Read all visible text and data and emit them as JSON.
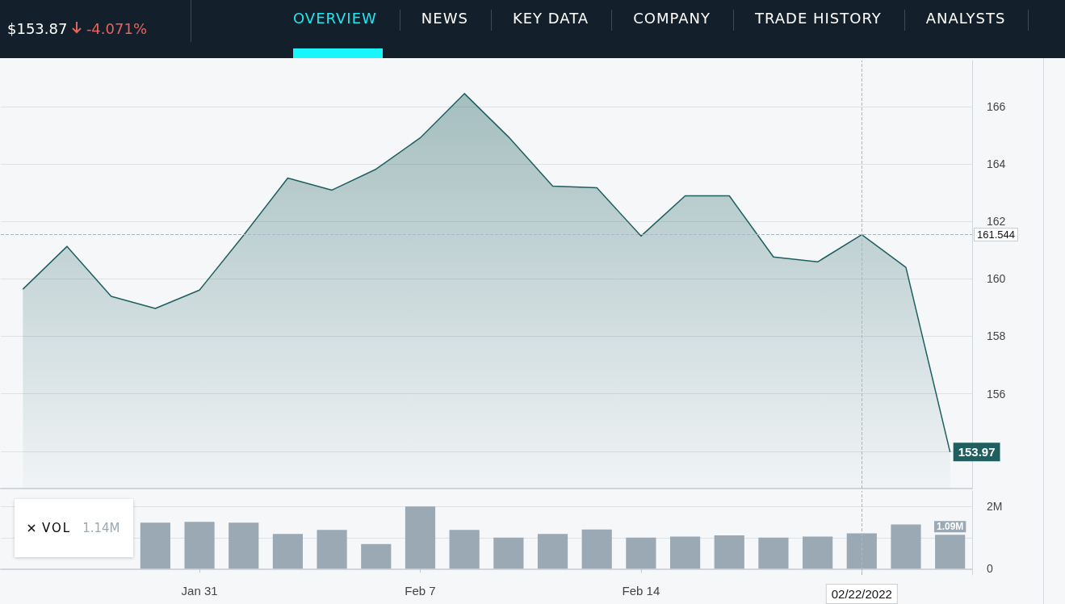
{
  "chart_data": [
    {
      "type": "area",
      "annotations": [
        "$153.87",
        "-4.071%",
        "OVERVIEW",
        "NEWS",
        "KEY DATA",
        "COMPANY",
        "TRADE HISTORY",
        "ANALYSTS"
      ],
      "categories": [
        null,
        null,
        null,
        null,
        "Jan 31",
        null,
        null,
        null,
        null,
        "Feb 7",
        null,
        null,
        null,
        null,
        "Feb 14",
        null,
        null,
        null,
        null,
        "02/22/2022",
        null,
        null
      ],
      "series": [
        {
          "color": "#1f5f5f",
          "values": [
            159.64,
            161.13,
            159.39,
            158.97,
            159.61,
            161.52,
            163.51,
            163.09,
            163.82,
            164.91,
            166.45,
            164.94,
            163.23,
            163.17,
            161.49,
            162.89,
            162.89,
            160.76,
            160.59,
            161.54,
            160.4,
            153.97
          ],
          "value_labels": [
            null,
            null,
            null,
            null,
            null,
            null,
            null,
            null,
            null,
            null,
            null,
            null,
            null,
            null,
            null,
            null,
            null,
            null,
            null,
            null,
            null,
            "153.97"
          ]
        }
      ],
      "ylim": [
        152.7,
        167.6
      ],
      "yticks": [
        {
          "value": 154,
          "label": null
        },
        156,
        158,
        160,
        162,
        164,
        166
      ],
      "ref_lines": [
        {
          "axis": "y",
          "value": 161.544,
          "label": "161.544",
          "line_style": "dashed"
        },
        {
          "axis": "x",
          "value": "02/22/2022",
          "line_style": "dashed"
        }
      ],
      "grid": "y",
      "tick_labels": "y",
      "marker": "none"
    },
    {
      "type": "bar",
      "annotations": [
        "VOL",
        "1.14M"
      ],
      "categories": [
        null,
        null,
        null,
        null,
        "Jan 31",
        null,
        null,
        null,
        null,
        "Feb 7",
        null,
        null,
        null,
        null,
        "Feb 14",
        null,
        null,
        null,
        null,
        "02/22/2022",
        null,
        null
      ],
      "series": [
        {
          "color": "#9aa9b3",
          "values": [
            null,
            null,
            null,
            1.48,
            1.51,
            1.48,
            1.12,
            1.25,
            0.79,
            2.0,
            1.25,
            1.0,
            1.12,
            1.26,
            1.0,
            1.03,
            1.07,
            1.0,
            1.03,
            1.14,
            1.42,
            1.09
          ],
          "value_labels": [
            null,
            null,
            null,
            null,
            null,
            null,
            null,
            null,
            null,
            null,
            null,
            null,
            null,
            null,
            null,
            null,
            null,
            null,
            null,
            null,
            null,
            "1.09M"
          ]
        }
      ],
      "ylim": [
        -0.2,
        2.5
      ],
      "yticks": [
        0,
        {
          "value": 1,
          "label": null
        },
        {
          "value": 2,
          "label": "2M"
        }
      ],
      "ref_lines": [
        {
          "axis": "x",
          "value": "02/22/2022",
          "line_style": "dashed"
        }
      ],
      "grid": "y"
    }
  ]
}
